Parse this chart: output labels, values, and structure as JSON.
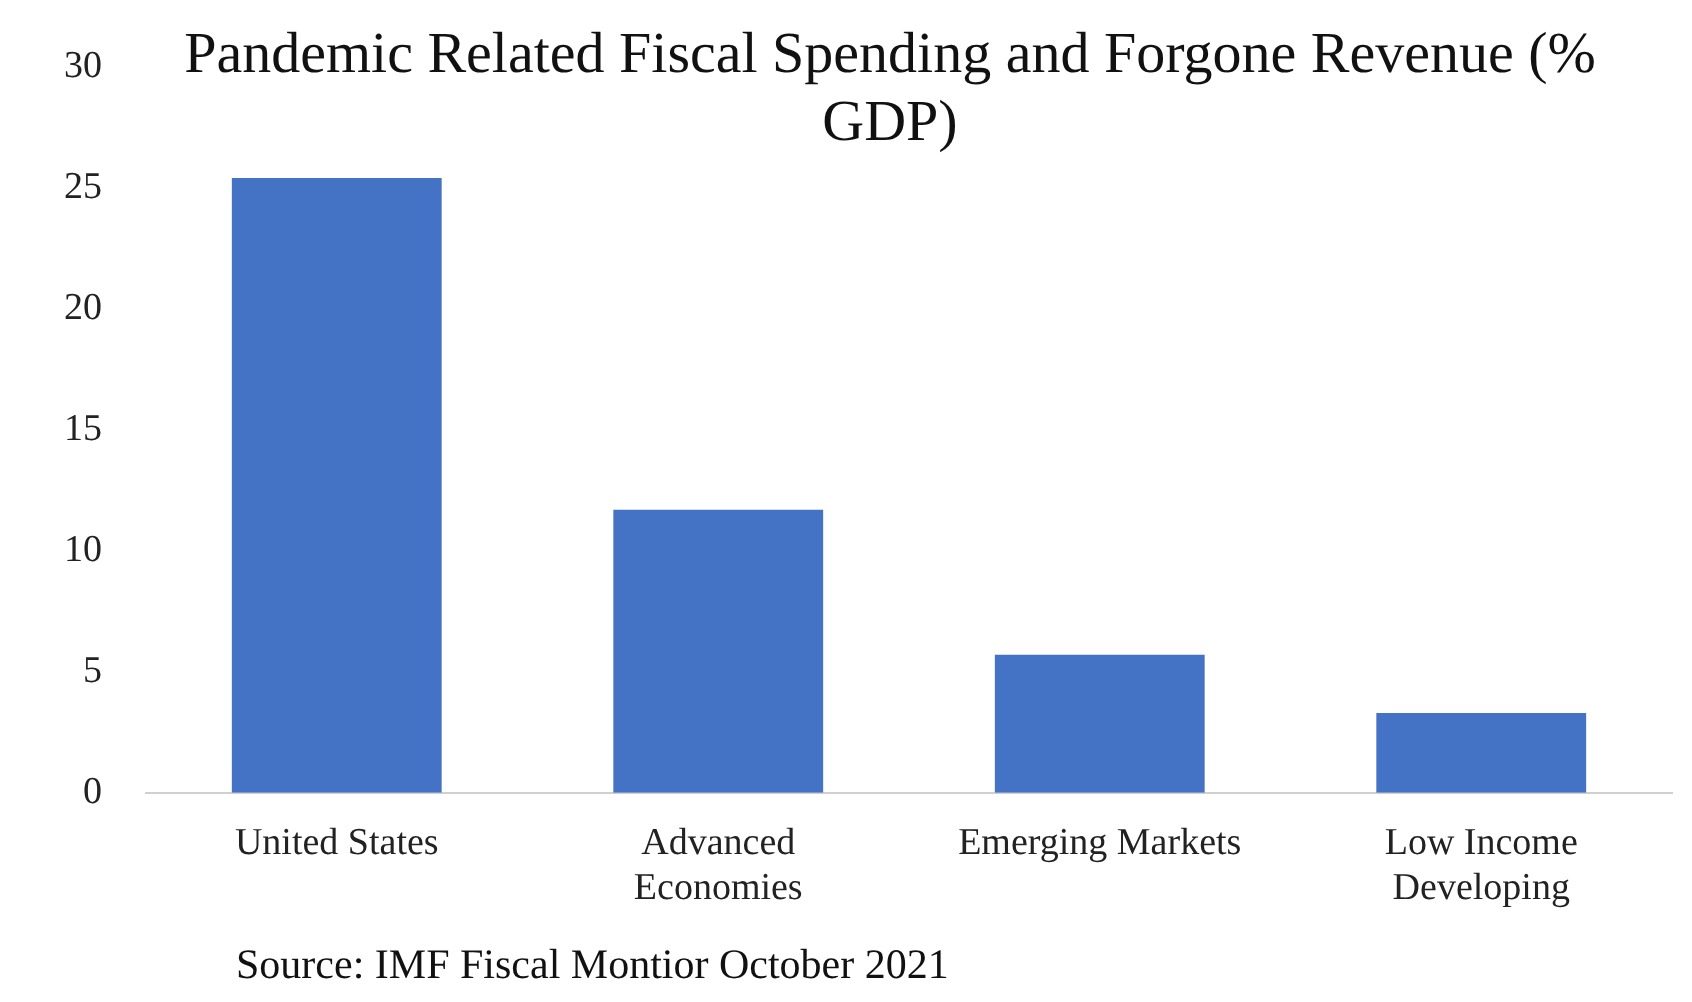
{
  "chart_data": {
    "type": "bar",
    "title": "Pandemic Related Fiscal Spending and Forgone Revenue (% GDP)",
    "categories": [
      "United States",
      "Advanced Economies",
      "Emerging Markets",
      "Low Income Developing"
    ],
    "values": [
      25.4,
      11.7,
      5.7,
      3.3
    ],
    "color": "#4472c4",
    "ylim": [
      0,
      30
    ],
    "yticks": [
      0,
      5,
      10,
      15,
      20,
      25,
      30
    ],
    "grid": false,
    "legend": false,
    "annotations": [
      "Source: IMF Fiscal Montior October 2021"
    ]
  }
}
